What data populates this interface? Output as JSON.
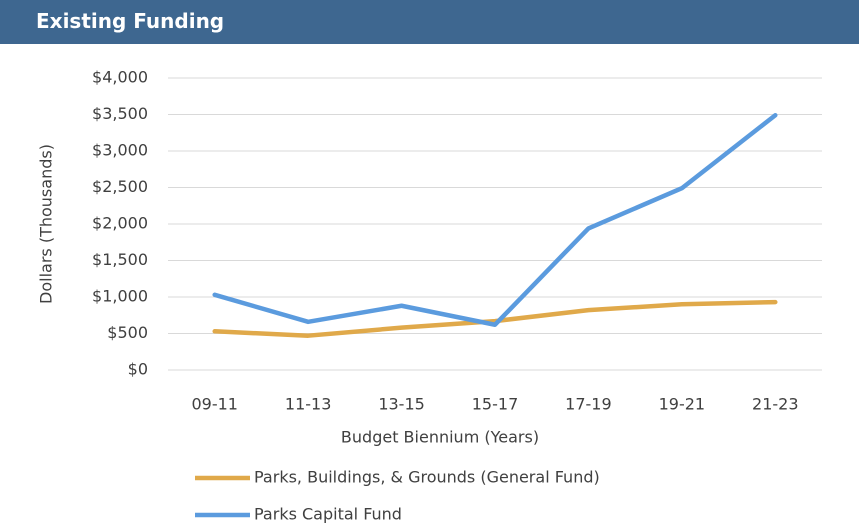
{
  "header": {
    "title": "Existing Funding"
  },
  "chart_data": {
    "type": "line",
    "x_label": "Budget Biennium (Years)",
    "y_label": "Dollars (Thousands)",
    "categories": [
      "09-11",
      "11-13",
      "13-15",
      "15-17",
      "17-19",
      "19-21",
      "21-23"
    ],
    "series": [
      {
        "name": "Parks, Buildings, & Grounds (General Fund)",
        "color": "#e0a94a",
        "values": [
          530,
          470,
          580,
          670,
          820,
          900,
          930
        ]
      },
      {
        "name": "Parks Capital Fund",
        "color": "#5b9bde",
        "values": [
          1030,
          660,
          880,
          620,
          1940,
          2490,
          3490
        ]
      }
    ],
    "ylim": [
      0,
      4000
    ],
    "yticks": [
      {
        "value": 0,
        "label": "$0"
      },
      {
        "value": 500,
        "label": "$500"
      },
      {
        "value": 1000,
        "label": "$1,000"
      },
      {
        "value": 1500,
        "label": "$1,500"
      },
      {
        "value": 2000,
        "label": "$2,000"
      },
      {
        "value": 2500,
        "label": "$2,500"
      },
      {
        "value": 3000,
        "label": "$3,000"
      },
      {
        "value": 3500,
        "label": "$3,500"
      },
      {
        "value": 4000,
        "label": "$4,000"
      }
    ],
    "grid": true,
    "legend": "bottom"
  }
}
